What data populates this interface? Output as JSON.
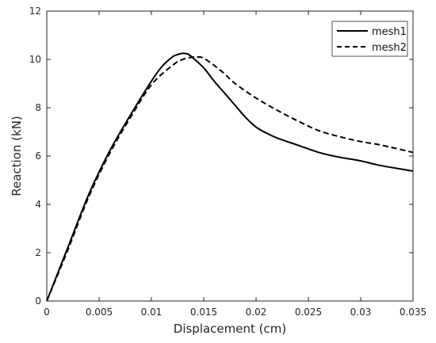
{
  "chart_data": {
    "type": "line",
    "title": "",
    "xlabel": "Displacement (cm)",
    "ylabel": "Reaction (kN)",
    "xlim": [
      0,
      0.035
    ],
    "ylim": [
      0,
      12
    ],
    "x_ticks": [
      0,
      0.005,
      0.01,
      0.015,
      0.02,
      0.025,
      0.03,
      0.035
    ],
    "x_tick_labels": [
      "0",
      "0.005",
      "0.01",
      "0.015",
      "0.02",
      "0.025",
      "0.03",
      "0.035"
    ],
    "y_ticks": [
      0,
      2,
      4,
      6,
      8,
      10,
      12
    ],
    "y_tick_labels": [
      "0",
      "2",
      "4",
      "6",
      "8",
      "10",
      "12"
    ],
    "grid": false,
    "legend_position": "top-right",
    "series": [
      {
        "name": "mesh1",
        "style": "solid",
        "color": "#000000",
        "x": [
          0,
          0.002,
          0.004,
          0.006,
          0.008,
          0.01,
          0.011,
          0.012,
          0.0125,
          0.013,
          0.0135,
          0.014,
          0.015,
          0.016,
          0.017,
          0.018,
          0.019,
          0.02,
          0.021,
          0.022,
          0.024,
          0.026,
          0.028,
          0.03,
          0.032,
          0.035
        ],
        "y": [
          0,
          2.2,
          4.4,
          6.2,
          7.7,
          9.1,
          9.7,
          10.1,
          10.2,
          10.25,
          10.22,
          10.05,
          9.65,
          9.1,
          8.6,
          8.1,
          7.6,
          7.2,
          6.95,
          6.75,
          6.45,
          6.15,
          5.95,
          5.8,
          5.6,
          5.38
        ]
      },
      {
        "name": "mesh2",
        "style": "dashed",
        "color": "#000000",
        "x": [
          0,
          0.002,
          0.004,
          0.006,
          0.008,
          0.01,
          0.012,
          0.013,
          0.014,
          0.0145,
          0.015,
          0.016,
          0.017,
          0.018,
          0.02,
          0.022,
          0.024,
          0.026,
          0.028,
          0.03,
          0.032,
          0.035
        ],
        "y": [
          0,
          2.1,
          4.3,
          6.1,
          7.6,
          8.95,
          9.75,
          10.0,
          10.1,
          10.1,
          10.05,
          9.75,
          9.4,
          9.0,
          8.4,
          7.9,
          7.45,
          7.05,
          6.8,
          6.6,
          6.45,
          6.15
        ]
      }
    ]
  }
}
